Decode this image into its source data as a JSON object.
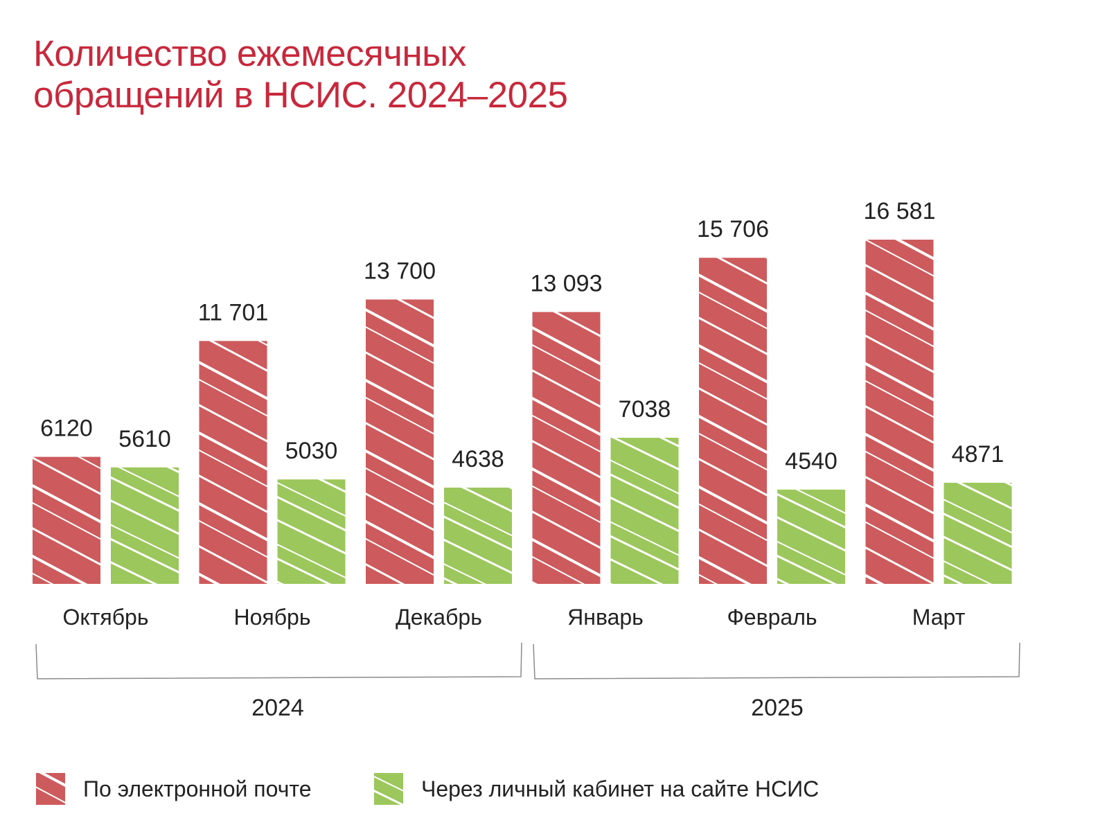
{
  "chart_data": {
    "type": "bar",
    "title": [
      "Количество ежемесячных",
      "обращений в НСИС. 2024–2025"
    ],
    "categories": [
      "Октябрь",
      "Ноябрь",
      "Декабрь",
      "Январь",
      "Февраль",
      "Март"
    ],
    "groups": [
      {
        "label": "2024",
        "categories": [
          "Октябрь",
          "Ноябрь",
          "Декабрь"
        ]
      },
      {
        "label": "2025",
        "categories": [
          "Январь",
          "Февраль",
          "Март"
        ]
      }
    ],
    "series": [
      {
        "name": "По электронной почте",
        "color": "#cd5a5c",
        "values": [
          6120,
          11701,
          13700,
          13093,
          15706,
          16581
        ],
        "labels": [
          "6120",
          "11 701",
          "13 700",
          "13 093",
          "15 706",
          "16 581"
        ]
      },
      {
        "name": "Через личный кабинет на сайте НСИС",
        "color": "#9cc75c",
        "values": [
          5610,
          5030,
          4638,
          7038,
          4540,
          4871
        ],
        "labels": [
          "5610",
          "5030",
          "4638",
          "7038",
          "4540",
          "4871"
        ]
      }
    ],
    "ylim": [
      0,
      16581
    ],
    "grid": false,
    "legend_position": "bottom"
  }
}
